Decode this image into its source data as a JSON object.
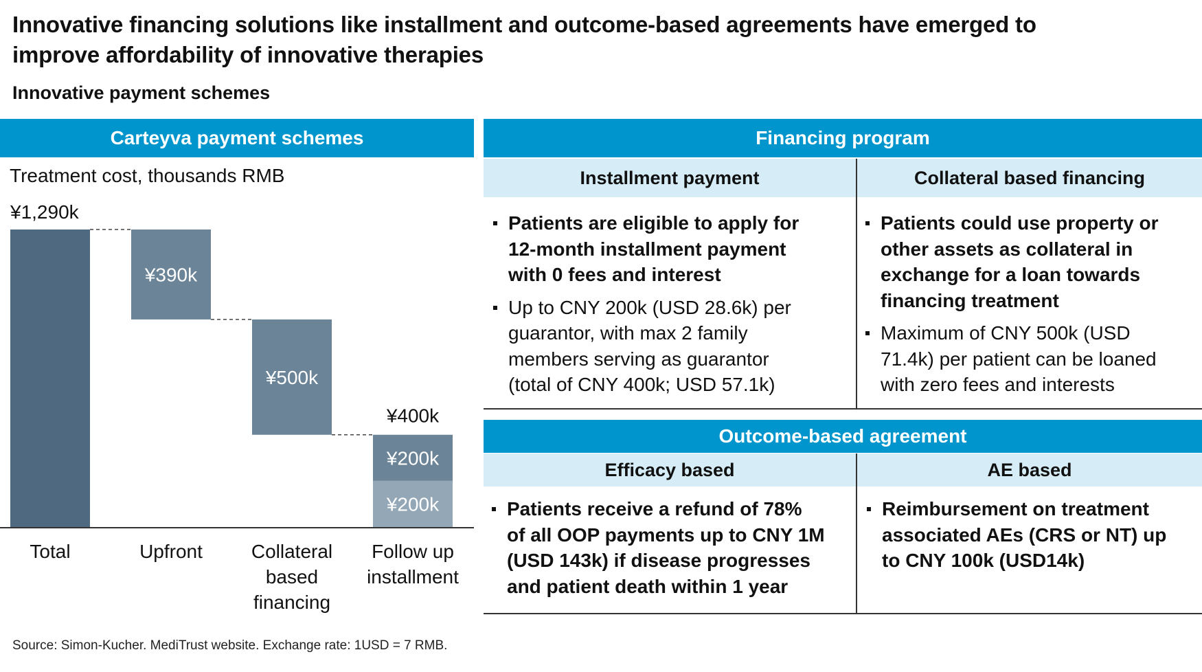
{
  "title": "Innovative financing solutions like installment and outcome-based agreements have emerged to improve affordability of innovative therapies",
  "subtitle": "Innovative payment schemes",
  "left_panel": {
    "header": "Carteyva payment schemes",
    "unit_label": "Treatment cost, thousands RMB"
  },
  "chart_data": {
    "type": "bar",
    "subtype": "waterfall",
    "ylabel": "Treatment cost, thousands RMB",
    "ylim": [
      0,
      1290
    ],
    "categories": [
      "Total",
      "Upfront",
      "Collateral based financing",
      "Follow up installment"
    ],
    "category_label_lines": [
      [
        "Total"
      ],
      [
        "Upfront"
      ],
      [
        "Collateral",
        "based",
        "financing"
      ],
      [
        "Follow up",
        "installment"
      ]
    ],
    "bars": [
      {
        "category": "Total",
        "base": 0,
        "value": 1290,
        "label": "¥1,290k",
        "color": "#4f6a80"
      },
      {
        "category": "Upfront",
        "base": 900,
        "value": 390,
        "label": "¥390k",
        "color": "#6b8497"
      },
      {
        "category": "Collateral based financing",
        "base": 400,
        "value": 500,
        "label": "¥500k",
        "color": "#6b8497"
      },
      {
        "category": "Follow up installment",
        "base": 200,
        "value": 200,
        "label": "¥200k",
        "color": "#6b8497"
      },
      {
        "category": "Follow up installment",
        "base": 0,
        "value": 200,
        "label": "¥200k",
        "color": "#93a7b6"
      }
    ],
    "total_labels": [
      {
        "category": "Follow up installment",
        "label": "¥400k",
        "value": 400
      }
    ]
  },
  "financing": {
    "header": "Financing program",
    "columns": [
      {
        "heading": "Installment payment",
        "bullets": [
          {
            "bold": true,
            "lines": [
              "Patients are eligible to apply for",
              "12-month installment payment",
              "with 0 fees and interest"
            ]
          },
          {
            "bold": false,
            "lines": [
              "Up to CNY 200k (USD 28.6k) per",
              "guarantor, with max 2 family",
              "members serving as guarantor",
              "(total of CNY 400k; USD 57.1k)"
            ]
          }
        ]
      },
      {
        "heading": "Collateral based financing",
        "bullets": [
          {
            "bold": true,
            "lines": [
              "Patients could use property or",
              "other assets as collateral in",
              "exchange for a loan towards",
              "financing treatment"
            ]
          },
          {
            "bold": false,
            "lines": [
              "Maximum of CNY 500k (USD",
              "71.4k) per patient can be loaned",
              "with zero fees and interests"
            ]
          }
        ]
      }
    ]
  },
  "outcome": {
    "header": "Outcome-based agreement",
    "columns": [
      {
        "heading": "Efficacy based",
        "bullets": [
          {
            "bold": true,
            "lines": [
              "Patients receive a refund of 78%",
              "of all OOP payments up to CNY 1M",
              "(USD 143k) if disease progresses",
              "and patient death within 1 year"
            ]
          }
        ]
      },
      {
        "heading": "AE based",
        "bullets": [
          {
            "bold": true,
            "lines": [
              "Reimbursement on treatment",
              "associated AEs (CRS or NT) up",
              "to CNY 100k (USD14k)"
            ]
          }
        ]
      }
    ]
  },
  "source": "Source: Simon-Kucher. MediTrust website. Exchange rate: 1USD = 7 RMB."
}
